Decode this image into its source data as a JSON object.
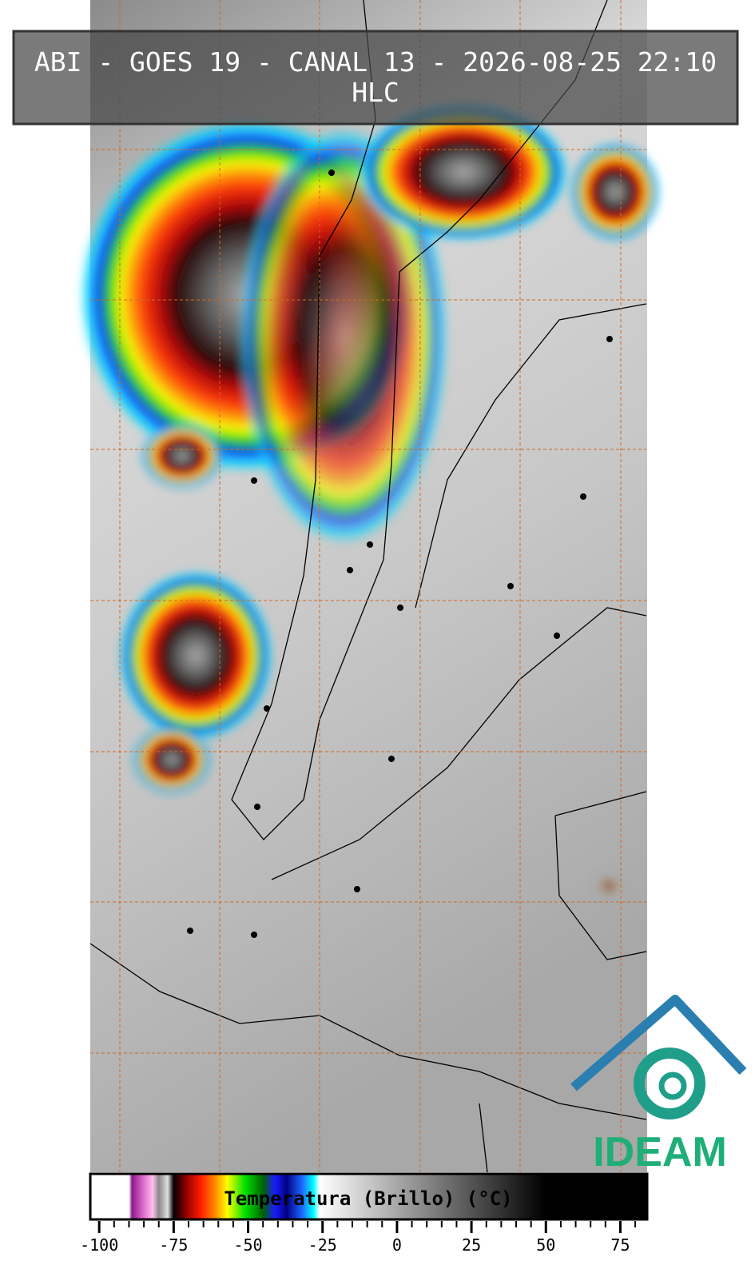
{
  "title": "ABI - GOES 19 - CANAL 13 - 2026-08-25 22:10",
  "subtitle": "HLC",
  "logo": "IDEAM",
  "colorbar": {
    "label": "Temperatura (Brillo) (°C)",
    "lim": [
      -103,
      84
    ],
    "ticks": [
      -100,
      -75,
      -50,
      -25,
      0,
      25,
      50,
      75
    ],
    "minor_step": 5,
    "stops": [
      {
        "value": -103,
        "color": "#ffffff"
      },
      {
        "value": -90,
        "color": "#ffffff"
      },
      {
        "value": -89,
        "color": "#8a1a8a"
      },
      {
        "value": -85,
        "color": "#e070d0"
      },
      {
        "value": -82,
        "color": "#ffc0e8"
      },
      {
        "value": -80,
        "color": "#888888"
      },
      {
        "value": -77,
        "color": "#e0e0e0"
      },
      {
        "value": -75,
        "color": "#000000"
      },
      {
        "value": -71,
        "color": "#8b0000"
      },
      {
        "value": -66,
        "color": "#ff1a00"
      },
      {
        "value": -61,
        "color": "#ff8c00"
      },
      {
        "value": -57,
        "color": "#ffff00"
      },
      {
        "value": -51,
        "color": "#00e000"
      },
      {
        "value": -45,
        "color": "#006400"
      },
      {
        "value": -41,
        "color": "#1a1aff"
      },
      {
        "value": -37,
        "color": "#000080"
      },
      {
        "value": -32,
        "color": "#1e64ff"
      },
      {
        "value": -28,
        "color": "#00ffff"
      },
      {
        "value": -26,
        "color": "#ffffff"
      },
      {
        "value": 50,
        "color": "#000000"
      },
      {
        "value": 84,
        "color": "#000000"
      }
    ]
  }
}
